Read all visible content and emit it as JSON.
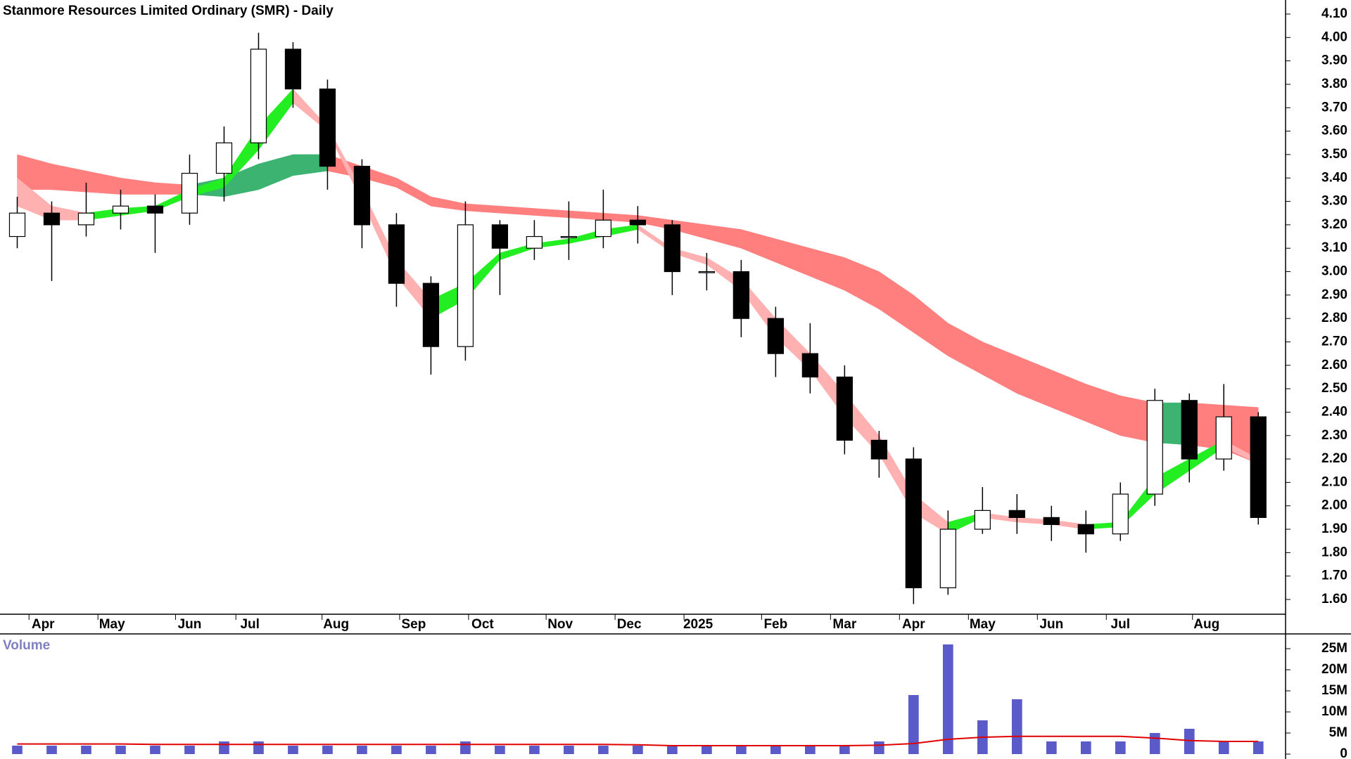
{
  "chart_data": {
    "type": "candlestick",
    "title": "Stanmore Resources Limited Ordinary (SMR) - Daily",
    "x": [
      1,
      3,
      5,
      7,
      9,
      11,
      13,
      15,
      17,
      19,
      21,
      23,
      25,
      27,
      29,
      31,
      33,
      35,
      37,
      39,
      41,
      43,
      45,
      47,
      49,
      51,
      53,
      55,
      57,
      59,
      61,
      63,
      65,
      67,
      69,
      71,
      73
    ],
    "open": [
      3.15,
      3.25,
      3.2,
      3.25,
      3.28,
      3.25,
      3.42,
      3.55,
      3.95,
      3.78,
      3.45,
      3.2,
      2.95,
      2.68,
      3.2,
      3.1,
      3.15,
      3.15,
      3.22,
      3.2,
      3.0,
      3.0,
      2.8,
      2.65,
      2.55,
      2.28,
      2.2,
      1.65,
      1.9,
      1.98,
      1.95,
      1.92,
      1.88,
      2.05,
      2.45,
      2.2,
      2.38
    ],
    "high": [
      3.32,
      3.3,
      3.38,
      3.35,
      3.33,
      3.5,
      3.62,
      4.02,
      3.98,
      3.82,
      3.48,
      3.25,
      2.98,
      3.3,
      3.22,
      3.22,
      3.3,
      3.35,
      3.28,
      3.22,
      3.08,
      3.05,
      2.85,
      2.78,
      2.6,
      2.32,
      2.25,
      1.98,
      2.08,
      2.05,
      2.0,
      1.98,
      2.1,
      2.5,
      2.48,
      2.52,
      2.4
    ],
    "low": [
      3.1,
      2.96,
      3.15,
      3.18,
      3.08,
      3.2,
      3.3,
      3.48,
      3.7,
      3.35,
      3.1,
      2.85,
      2.56,
      2.62,
      2.9,
      3.05,
      3.05,
      3.1,
      3.12,
      2.9,
      2.92,
      2.72,
      2.55,
      2.48,
      2.22,
      2.12,
      1.58,
      1.62,
      1.88,
      1.88,
      1.85,
      1.8,
      1.85,
      2.0,
      2.1,
      2.15,
      1.92
    ],
    "close": [
      3.25,
      3.2,
      3.25,
      3.28,
      3.25,
      3.42,
      3.55,
      3.95,
      3.78,
      3.45,
      3.2,
      2.95,
      2.68,
      3.2,
      3.1,
      3.15,
      3.15,
      3.22,
      3.2,
      3.0,
      3.0,
      2.8,
      2.65,
      2.55,
      2.28,
      2.2,
      1.65,
      1.9,
      1.98,
      1.95,
      1.92,
      1.88,
      2.05,
      2.45,
      2.2,
      2.38,
      1.95
    ],
    "bands": [
      {
        "upper": [
          3.5,
          3.46,
          3.43,
          3.4,
          3.38,
          3.37,
          3.4,
          3.46,
          3.5,
          3.5,
          3.45,
          3.4,
          3.32,
          3.29,
          3.28,
          3.27,
          3.26,
          3.25,
          3.24,
          3.22,
          3.2,
          3.18,
          3.14,
          3.1,
          3.06,
          3.0,
          2.9,
          2.78,
          2.7,
          2.64,
          2.58,
          2.52,
          2.47,
          2.44,
          2.44,
          2.43,
          2.42
        ],
        "lower": [
          3.35,
          3.35,
          3.34,
          3.33,
          3.33,
          3.33,
          3.32,
          3.35,
          3.41,
          3.43,
          3.4,
          3.36,
          3.28,
          3.26,
          3.25,
          3.24,
          3.23,
          3.22,
          3.21,
          3.18,
          3.14,
          3.1,
          3.04,
          2.98,
          2.92,
          2.84,
          2.74,
          2.64,
          2.56,
          2.48,
          2.42,
          2.36,
          2.3,
          2.27,
          2.26,
          2.24,
          2.18
        ],
        "rising_color": "#3cb371",
        "falling_color": "#ff7f7f"
      },
      {
        "upper": [
          3.4,
          3.28,
          3.25,
          3.27,
          3.28,
          3.35,
          3.4,
          3.62,
          3.78,
          3.62,
          3.35,
          3.05,
          2.88,
          2.95,
          3.08,
          3.12,
          3.14,
          3.18,
          3.2,
          3.1,
          3.06,
          2.97,
          2.8,
          2.65,
          2.48,
          2.3,
          2.05,
          1.93,
          1.97,
          1.95,
          1.94,
          1.92,
          1.93,
          2.12,
          2.2,
          2.28,
          2.2
        ],
        "lower": [
          3.28,
          3.22,
          3.22,
          3.24,
          3.26,
          3.32,
          3.36,
          3.52,
          3.72,
          3.6,
          3.3,
          2.98,
          2.8,
          2.88,
          3.05,
          3.1,
          3.12,
          3.15,
          3.18,
          3.08,
          3.03,
          2.92,
          2.72,
          2.58,
          2.38,
          2.22,
          1.97,
          1.88,
          1.95,
          1.93,
          1.92,
          1.9,
          1.91,
          2.05,
          2.15,
          2.25,
          2.18
        ],
        "rising_color": "#22ee22",
        "falling_color": "#ffb0b0"
      }
    ],
    "up_color": "#ffffff",
    "down_color": "#000000",
    "xlim": [
      0,
      74.5
    ],
    "xticks": [
      {
        "value": 2.5,
        "label": "Apr"
      },
      {
        "value": 6.5,
        "label": "May"
      },
      {
        "value": 11,
        "label": "Jun"
      },
      {
        "value": 14.5,
        "label": "Jul"
      },
      {
        "value": 19.5,
        "label": "Aug"
      },
      {
        "value": 24,
        "label": "Sep"
      },
      {
        "value": 28,
        "label": "Oct"
      },
      {
        "value": 32.5,
        "label": "Nov"
      },
      {
        "value": 36.5,
        "label": "Dec"
      },
      {
        "value": 40.5,
        "label": "2025"
      },
      {
        "value": 45,
        "label": "Feb"
      },
      {
        "value": 49,
        "label": "Mar"
      },
      {
        "value": 53,
        "label": "Apr"
      },
      {
        "value": 57,
        "label": "May"
      },
      {
        "value": 61,
        "label": "Jun"
      },
      {
        "value": 65,
        "label": "Jul"
      },
      {
        "value": 70,
        "label": "Aug"
      }
    ],
    "ylim": [
      1.54,
      4.16
    ],
    "yticks": [
      {
        "value": 1.6,
        "label": "1.60"
      },
      {
        "value": 1.7,
        "label": "1.70"
      },
      {
        "value": 1.8,
        "label": "1.80"
      },
      {
        "value": 1.9,
        "label": "1.90"
      },
      {
        "value": 2.0,
        "label": "2.00"
      },
      {
        "value": 2.1,
        "label": "2.10"
      },
      {
        "value": 2.2,
        "label": "2.20"
      },
      {
        "value": 2.3,
        "label": "2.30"
      },
      {
        "value": 2.4,
        "label": "2.40"
      },
      {
        "value": 2.5,
        "label": "2.50"
      },
      {
        "value": 2.6,
        "label": "2.60"
      },
      {
        "value": 2.7,
        "label": "2.70"
      },
      {
        "value": 2.8,
        "label": "2.80"
      },
      {
        "value": 2.9,
        "label": "2.90"
      },
      {
        "value": 3.0,
        "label": "3.00"
      },
      {
        "value": 3.1,
        "label": "3.10"
      },
      {
        "value": 3.2,
        "label": "3.20"
      },
      {
        "value": 3.3,
        "label": "3.30"
      },
      {
        "value": 3.4,
        "label": "3.40"
      },
      {
        "value": 3.5,
        "label": "3.50"
      },
      {
        "value": 3.6,
        "label": "3.60"
      },
      {
        "value": 3.7,
        "label": "3.70"
      },
      {
        "value": 3.8,
        "label": "3.80"
      },
      {
        "value": 3.9,
        "label": "3.90"
      },
      {
        "value": 4.0,
        "label": "4.00"
      },
      {
        "value": 4.1,
        "label": "4.10"
      }
    ],
    "volume": {
      "label": "Volume",
      "values": [
        2000000,
        2000000,
        2000000,
        2000000,
        2000000,
        2000000,
        3000000,
        3000000,
        2000000,
        2000000,
        2000000,
        2000000,
        2000000,
        3000000,
        2000000,
        2000000,
        2000000,
        2000000,
        2000000,
        2000000,
        2000000,
        2000000,
        2000000,
        2000000,
        2000000,
        3000000,
        14000000,
        26000000,
        8000000,
        13000000,
        3000000,
        3000000,
        3000000,
        5000000,
        6000000,
        3000000,
        3000000
      ],
      "average": [
        2400000,
        2400000,
        2400000,
        2400000,
        2300000,
        2300000,
        2300000,
        2300000,
        2300000,
        2300000,
        2300000,
        2300000,
        2300000,
        2300000,
        2300000,
        2300000,
        2300000,
        2300000,
        2200000,
        2000000,
        2000000,
        2000000,
        2000000,
        2000000,
        2000000,
        2100000,
        2500000,
        3500000,
        4000000,
        4200000,
        4200000,
        4200000,
        4200000,
        3800000,
        3200000,
        3000000,
        3000000
      ],
      "color": "#5a5ac8",
      "average_color": "#e00000",
      "ylim": [
        0,
        28000000
      ],
      "yticks": [
        {
          "value": 0,
          "label": "0"
        },
        {
          "value": 5000000,
          "label": "5M"
        },
        {
          "value": 10000000,
          "label": "10M"
        },
        {
          "value": 15000000,
          "label": "15M"
        },
        {
          "value": 20000000,
          "label": "20M"
        },
        {
          "value": 25000000,
          "label": "25M"
        }
      ]
    }
  }
}
